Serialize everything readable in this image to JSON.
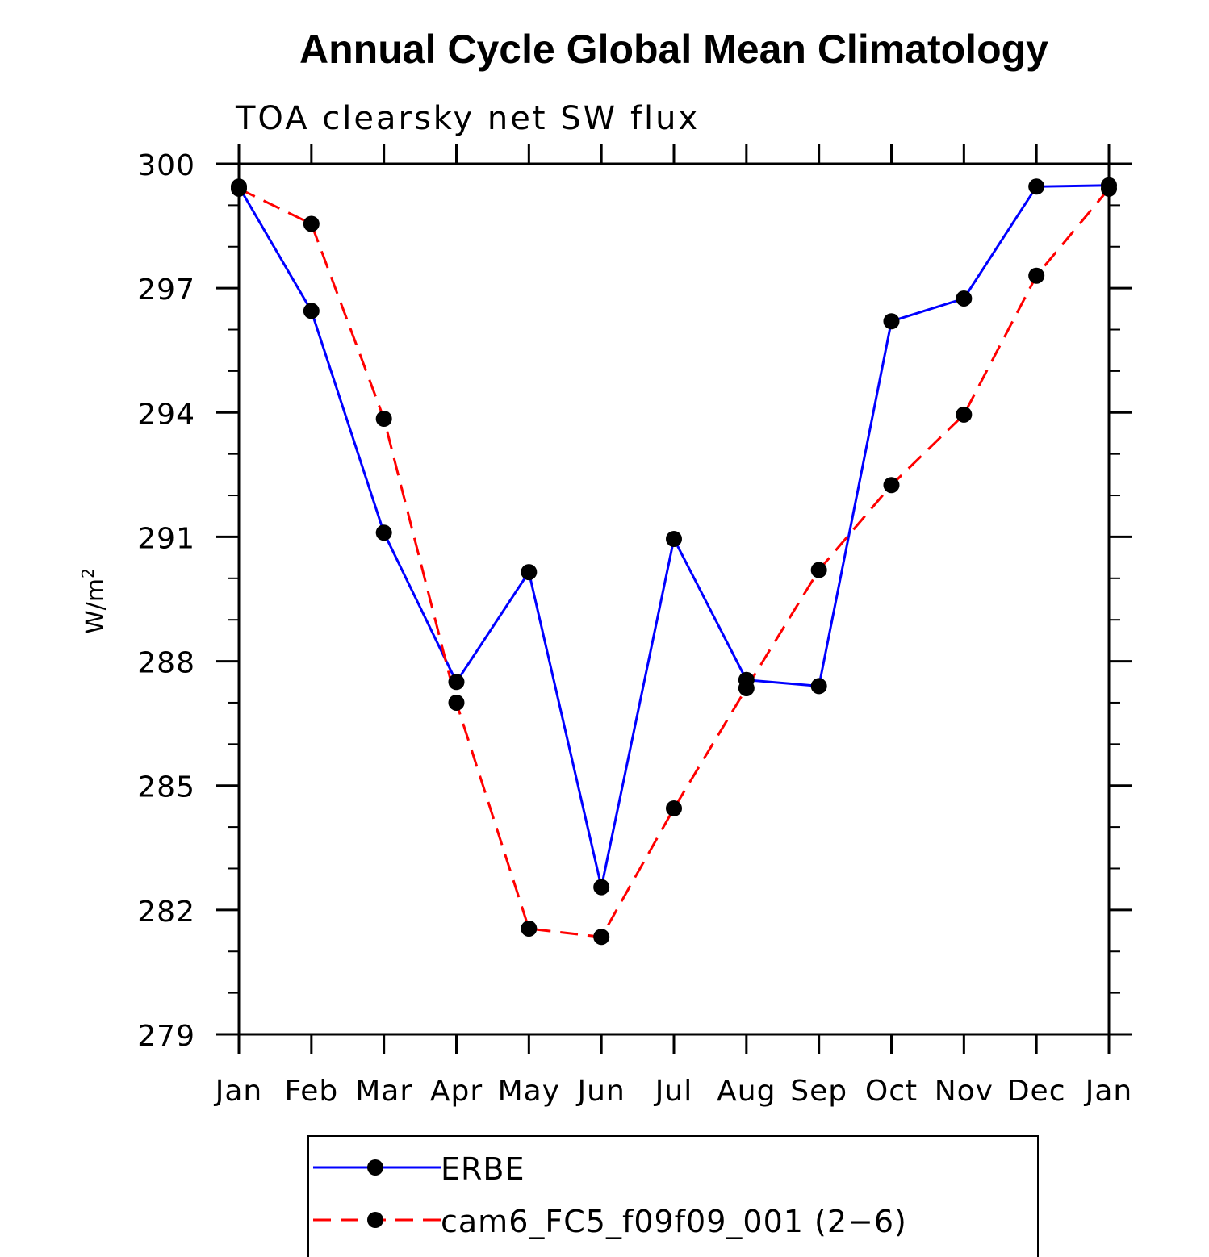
{
  "chart_data": {
    "type": "line",
    "title": "Annual Cycle Global Mean Climatology",
    "subtitle": "TOA clearsky net SW flux",
    "ylabel": "W/m",
    "ylabel_sup": "2",
    "xlabel": "",
    "categories": [
      "Jan",
      "Feb",
      "Mar",
      "Apr",
      "May",
      "Jun",
      "Jul",
      "Aug",
      "Sep",
      "Oct",
      "Nov",
      "Dec",
      "Jan"
    ],
    "ylim": [
      279,
      300
    ],
    "yticks": [
      279,
      282,
      285,
      288,
      291,
      294,
      297,
      300
    ],
    "yticks_labels": [
      "279",
      "282",
      "285",
      "288",
      "291",
      "294",
      "297",
      "300"
    ],
    "grid": false,
    "legend_position": "bottom",
    "series": [
      {
        "name": "ERBE",
        "color": "#0000ff",
        "dash": "solid",
        "values": [
          299.45,
          296.45,
          291.1,
          287.5,
          290.15,
          282.55,
          290.95,
          287.55,
          287.4,
          296.2,
          296.75,
          299.45,
          299.48
        ]
      },
      {
        "name": "cam6_FC5_f09f09_001 (2−6)",
        "color": "#ff0000",
        "dash": "dashed",
        "values": [
          299.4,
          298.55,
          293.85,
          287.0,
          281.55,
          281.35,
          284.45,
          287.35,
          290.2,
          292.25,
          293.95,
          297.3,
          299.4
        ]
      }
    ]
  }
}
